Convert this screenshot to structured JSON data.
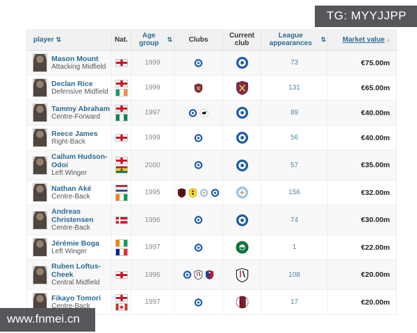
{
  "overlays": {
    "tg_badge": "TG: MYYJJPP",
    "watermark": "www.fnmei.cn"
  },
  "colors": {
    "link_blue": "#2a6a92",
    "appearances_link": "#4f87a5",
    "header_bg": "#f1f1f1",
    "overlay_bg": "#56575b",
    "market_value_text": "#222222"
  },
  "table": {
    "headers": {
      "player": {
        "label": "player",
        "sort_icon": "⇅"
      },
      "nat": {
        "label": "Nat."
      },
      "age_group": {
        "label": "Age group",
        "sort_icon": "⇅"
      },
      "clubs": {
        "label": "Clubs"
      },
      "current_club": {
        "label": "Current club"
      },
      "league_appearances": {
        "label": "League appearances",
        "sort_icon": "⇅"
      },
      "market_value": {
        "label": "Market value",
        "sort_icon": "↓"
      }
    },
    "rows": [
      {
        "name": "Mason Mount",
        "position": "Attacking Midfield",
        "nationalities": [
          "england"
        ],
        "age_group": "1999",
        "clubs": [
          "chelsea"
        ],
        "current_club": "chelsea",
        "league_appearances": "73",
        "market_value": "€75.00m"
      },
      {
        "name": "Declan Rice",
        "position": "Defensive Midfield",
        "nationalities": [
          "england",
          "ireland"
        ],
        "age_group": "1999",
        "clubs": [
          "west-ham"
        ],
        "current_club": "west-ham",
        "league_appearances": "131",
        "market_value": "€65.00m"
      },
      {
        "name": "Tammy Abraham",
        "position": "Centre-Forward",
        "nationalities": [
          "england",
          "nigeria"
        ],
        "age_group": "1997",
        "clubs": [
          "chelsea",
          "swansea"
        ],
        "current_club": "chelsea",
        "league_appearances": "89",
        "market_value": "€40.00m"
      },
      {
        "name": "Reece James",
        "position": "Right-Back",
        "nationalities": [
          "england"
        ],
        "age_group": "1999",
        "clubs": [
          "chelsea"
        ],
        "current_club": "chelsea",
        "league_appearances": "56",
        "market_value": "€40.00m"
      },
      {
        "name": "Callum Hudson-Odoi",
        "position": "Left Winger",
        "nationalities": [
          "england",
          "ghana"
        ],
        "age_group": "2000",
        "clubs": [
          "chelsea"
        ],
        "current_club": "chelsea",
        "league_appearances": "57",
        "market_value": "€35.00m"
      },
      {
        "name": "Nathan Aké",
        "position": "Centre-Back",
        "nationalities": [
          "netherlands",
          "ivory-coast"
        ],
        "age_group": "1995",
        "clubs": [
          "bournemouth",
          "watford",
          "man-city",
          "chelsea"
        ],
        "current_club": "man-city",
        "league_appearances": "156",
        "market_value": "€32.00m"
      },
      {
        "name": "Andreas Christensen",
        "position": "Centre-Back",
        "nationalities": [
          "denmark"
        ],
        "age_group": "1996",
        "clubs": [
          "chelsea"
        ],
        "current_club": "chelsea",
        "league_appearances": "74",
        "market_value": "€30.00m"
      },
      {
        "name": "Jérémie Boga",
        "position": "Left Winger",
        "nationalities": [
          "ivory-coast",
          "france"
        ],
        "age_group": "1997",
        "clubs": [
          "chelsea"
        ],
        "current_club": "sassuolo",
        "league_appearances": "1",
        "market_value": "€22.00m"
      },
      {
        "name": "Ruben Loftus-Cheek",
        "position": "Central Midfield",
        "nationalities": [
          "england"
        ],
        "age_group": "1996",
        "clubs": [
          "chelsea",
          "fulham",
          "crystal-palace"
        ],
        "current_club": "fulham",
        "league_appearances": "108",
        "market_value": "€20.00m"
      },
      {
        "name": "Fikayo Tomori",
        "position": "Centre-Back",
        "nationalities": [
          "england",
          "canada"
        ],
        "age_group": "1997",
        "clubs": [
          "chelsea"
        ],
        "current_club": "ac-milan",
        "league_appearances": "17",
        "market_value": "€20.00m"
      }
    ]
  }
}
